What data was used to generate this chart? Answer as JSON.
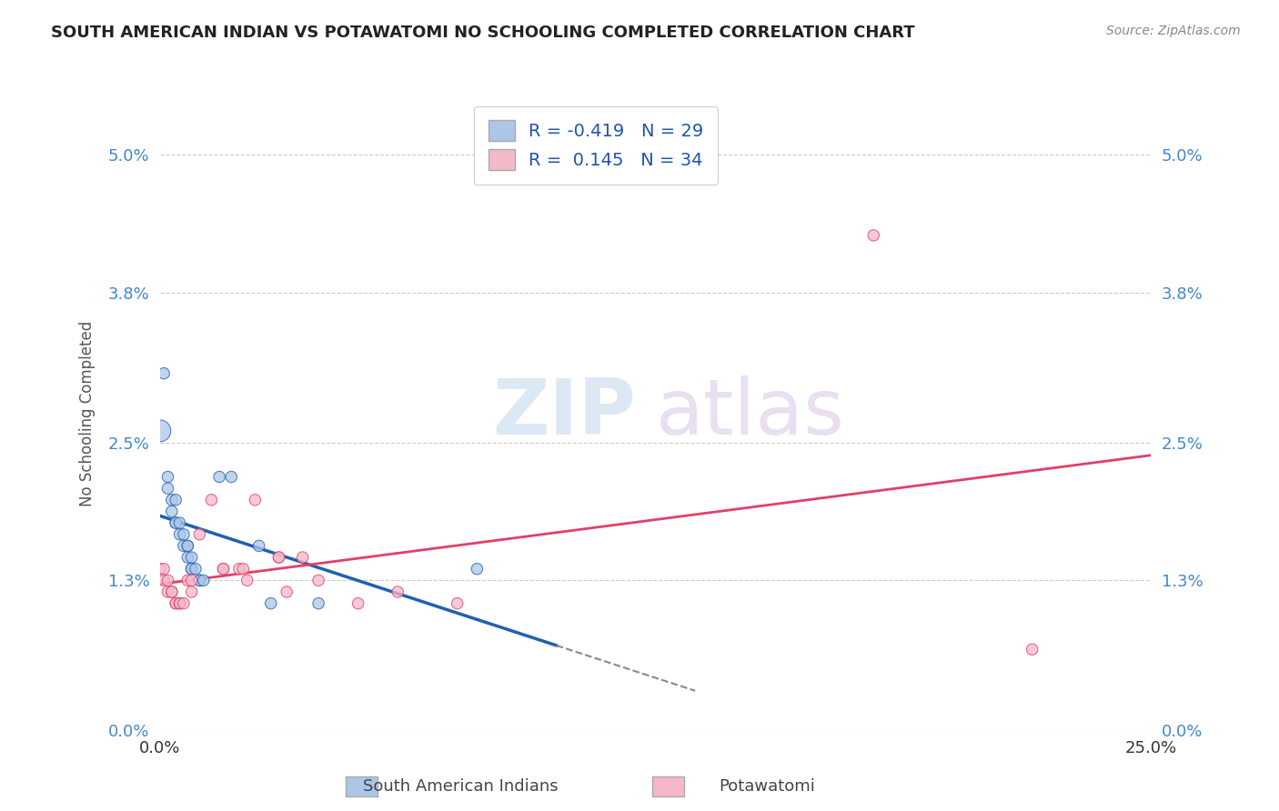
{
  "title": "SOUTH AMERICAN INDIAN VS POTAWATOMI NO SCHOOLING COMPLETED CORRELATION CHART",
  "source_text": "Source: ZipAtlas.com",
  "ylabel": "No Schooling Completed",
  "xlim": [
    0.0,
    0.25
  ],
  "ylim": [
    0.0,
    0.055
  ],
  "xtick_positions": [
    0.0,
    0.25
  ],
  "xtick_labels": [
    "0.0%",
    "25.0%"
  ],
  "ytick_values": [
    0.0,
    0.013,
    0.025,
    0.038,
    0.05
  ],
  "ytick_labels": [
    "0.0%",
    "1.3%",
    "2.5%",
    "3.8%",
    "5.0%"
  ],
  "legend_label1": "South American Indians",
  "legend_label2": "Potawatomi",
  "r1": "-0.419",
  "n1": "29",
  "r2": "0.145",
  "n2": "34",
  "color1": "#adc6e8",
  "color2": "#f5b8c8",
  "line_color1": "#2060b0",
  "line_color2": "#e0406a",
  "watermark_zip": "ZIP",
  "watermark_atlas": "atlas",
  "blue_points": [
    [
      0.0,
      0.026,
      300
    ],
    [
      0.001,
      0.031,
      80
    ],
    [
      0.002,
      0.022,
      80
    ],
    [
      0.002,
      0.021,
      80
    ],
    [
      0.003,
      0.02,
      80
    ],
    [
      0.003,
      0.019,
      80
    ],
    [
      0.004,
      0.02,
      80
    ],
    [
      0.004,
      0.018,
      80
    ],
    [
      0.004,
      0.018,
      80
    ],
    [
      0.005,
      0.018,
      80
    ],
    [
      0.005,
      0.017,
      80
    ],
    [
      0.006,
      0.017,
      80
    ],
    [
      0.006,
      0.016,
      80
    ],
    [
      0.007,
      0.016,
      80
    ],
    [
      0.007,
      0.016,
      80
    ],
    [
      0.007,
      0.015,
      80
    ],
    [
      0.008,
      0.015,
      80
    ],
    [
      0.008,
      0.014,
      80
    ],
    [
      0.008,
      0.014,
      80
    ],
    [
      0.009,
      0.014,
      80
    ],
    [
      0.01,
      0.013,
      80
    ],
    [
      0.01,
      0.013,
      80
    ],
    [
      0.011,
      0.013,
      80
    ],
    [
      0.015,
      0.022,
      80
    ],
    [
      0.018,
      0.022,
      80
    ],
    [
      0.025,
      0.016,
      80
    ],
    [
      0.028,
      0.011,
      80
    ],
    [
      0.04,
      0.011,
      80
    ],
    [
      0.08,
      0.014,
      80
    ]
  ],
  "pink_points": [
    [
      0.0,
      0.014,
      80
    ],
    [
      0.001,
      0.014,
      80
    ],
    [
      0.001,
      0.013,
      80
    ],
    [
      0.002,
      0.013,
      80
    ],
    [
      0.002,
      0.012,
      80
    ],
    [
      0.003,
      0.012,
      80
    ],
    [
      0.003,
      0.012,
      80
    ],
    [
      0.004,
      0.011,
      80
    ],
    [
      0.004,
      0.011,
      80
    ],
    [
      0.005,
      0.011,
      80
    ],
    [
      0.005,
      0.011,
      80
    ],
    [
      0.005,
      0.011,
      80
    ],
    [
      0.006,
      0.011,
      80
    ],
    [
      0.007,
      0.013,
      80
    ],
    [
      0.008,
      0.013,
      80
    ],
    [
      0.008,
      0.012,
      80
    ],
    [
      0.01,
      0.017,
      80
    ],
    [
      0.013,
      0.02,
      80
    ],
    [
      0.016,
      0.014,
      80
    ],
    [
      0.016,
      0.014,
      80
    ],
    [
      0.02,
      0.014,
      80
    ],
    [
      0.021,
      0.014,
      80
    ],
    [
      0.022,
      0.013,
      80
    ],
    [
      0.024,
      0.02,
      80
    ],
    [
      0.03,
      0.015,
      80
    ],
    [
      0.03,
      0.015,
      80
    ],
    [
      0.032,
      0.012,
      80
    ],
    [
      0.036,
      0.015,
      80
    ],
    [
      0.04,
      0.013,
      80
    ],
    [
      0.05,
      0.011,
      80
    ],
    [
      0.06,
      0.012,
      80
    ],
    [
      0.075,
      0.011,
      80
    ],
    [
      0.18,
      0.043,
      80
    ],
    [
      0.22,
      0.007,
      80
    ]
  ],
  "blue_line": [
    0.0,
    0.1
  ],
  "blue_dash": [
    0.1,
    0.135
  ],
  "pink_line": [
    0.0,
    0.25
  ]
}
